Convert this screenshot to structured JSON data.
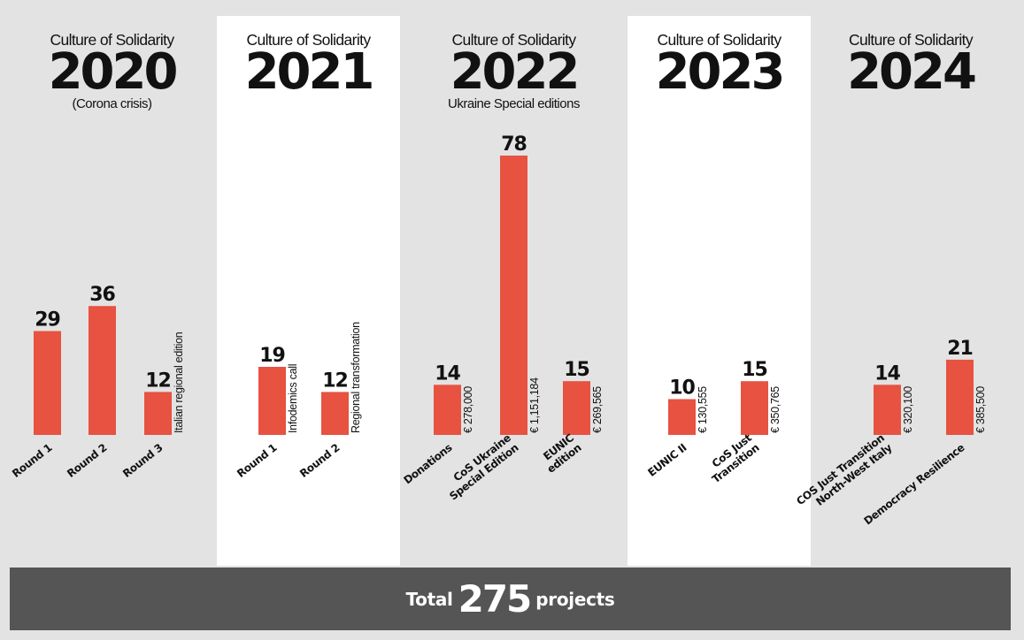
{
  "colors": {
    "bar": "#e75241",
    "panel_gray": "#e3e3e3",
    "panel_white": "#ffffff",
    "total_bg": "#555555"
  },
  "panels": [
    {
      "series": "Culture of Solidarity",
      "year": "2020",
      "subtitle": "(Corona crisis)",
      "bg": "gray"
    },
    {
      "series": "Culture of Solidarity",
      "year": "2021",
      "subtitle": "",
      "bg": "white"
    },
    {
      "series": "Culture of Solidarity",
      "year": "2022",
      "subtitle": "Ukraine Special editions",
      "bg": "gray"
    },
    {
      "series": "Culture of Solidarity",
      "year": "2023",
      "subtitle": "",
      "bg": "white"
    },
    {
      "series": "Culture of Solidarity",
      "year": "2024",
      "subtitle": "",
      "bg": "gray"
    }
  ],
  "total": {
    "prefix": "Total",
    "value": "275",
    "suffix": "projects"
  },
  "chart_data": {
    "type": "bar",
    "value_label": "projects",
    "groups": [
      {
        "year": "2020",
        "bars": [
          {
            "category": [
              "Round 1"
            ],
            "value": 29,
            "side_label": ""
          },
          {
            "category": [
              "Round 2"
            ],
            "value": 36,
            "side_label": ""
          },
          {
            "category": [
              "Round 3"
            ],
            "value": 12,
            "side_label": "Italian regional edition"
          }
        ]
      },
      {
        "year": "2021",
        "bars": [
          {
            "category": [
              "Round 1"
            ],
            "value": 19,
            "side_label": "Infodemics call"
          },
          {
            "category": [
              "Round 2"
            ],
            "value": 12,
            "side_label": "Regional transformation"
          }
        ]
      },
      {
        "year": "2022",
        "bars": [
          {
            "category": [
              "Donations"
            ],
            "value": 14,
            "side_label": "€ 278,000"
          },
          {
            "category": [
              "CoS Ukraine",
              "Special Edition"
            ],
            "value": 78,
            "side_label": "€ 1,151,184"
          },
          {
            "category": [
              "EUNIC",
              "edition"
            ],
            "value": 15,
            "side_label": "€ 269,565"
          }
        ]
      },
      {
        "year": "2023",
        "bars": [
          {
            "category": [
              "EUNIC II"
            ],
            "value": 10,
            "side_label": "€ 130,555"
          },
          {
            "category": [
              "CoS Just",
              "Transition"
            ],
            "value": 15,
            "side_label": "€ 350,765"
          }
        ]
      },
      {
        "year": "2024",
        "bars": [
          {
            "category": [
              "COS Just Transition",
              "North-West Italy"
            ],
            "value": 14,
            "side_label": "€ 320,100"
          },
          {
            "category": [
              "Democracy Resilience"
            ],
            "value": 21,
            "side_label": "€ 385,500"
          }
        ]
      }
    ]
  }
}
